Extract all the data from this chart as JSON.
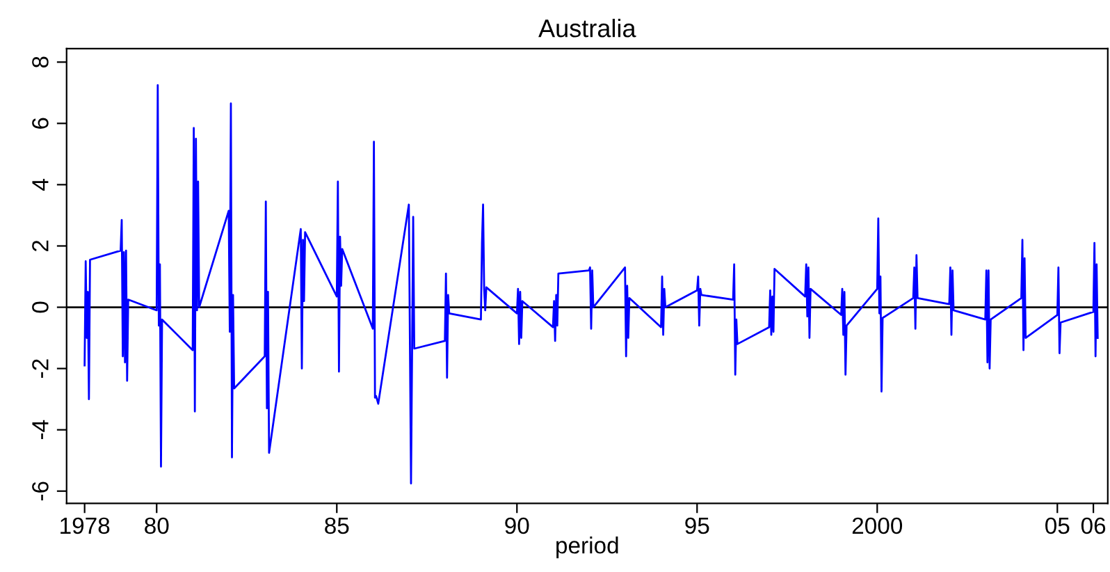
{
  "chart_data": {
    "type": "line",
    "title": "Australia",
    "xlabel": "period",
    "series": [
      {
        "color": "#0000ff",
        "x": [
          1978.0,
          1978.03,
          1978.06,
          1978.09,
          1978.12,
          1978.15,
          1979.0,
          1979.03,
          1979.06,
          1979.09,
          1979.12,
          1979.15,
          1979.18,
          1979.21,
          1980.0,
          1980.03,
          1980.06,
          1980.09,
          1980.12,
          1980.15,
          1981.0,
          1981.03,
          1981.06,
          1981.09,
          1981.12,
          1981.15,
          1981.18,
          1982.0,
          1982.03,
          1982.06,
          1982.09,
          1982.12,
          1982.15,
          1983.0,
          1983.03,
          1983.06,
          1983.09,
          1983.12,
          1984.0,
          1984.03,
          1984.06,
          1984.09,
          1984.12,
          1985.0,
          1985.03,
          1985.06,
          1985.09,
          1985.12,
          1985.15,
          1986.0,
          1986.03,
          1986.06,
          1986.09,
          1986.15,
          1987.0,
          1987.06,
          1987.12,
          1987.15,
          1988.0,
          1988.03,
          1988.06,
          1988.09,
          1988.12,
          1989.0,
          1989.03,
          1989.06,
          1989.09,
          1989.12,
          1989.15,
          1990.0,
          1990.03,
          1990.06,
          1990.09,
          1990.12,
          1990.15,
          1991.0,
          1991.03,
          1991.06,
          1991.09,
          1991.12,
          1991.15,
          1992.0,
          1992.03,
          1992.06,
          1992.09,
          1992.12,
          1993.0,
          1993.03,
          1993.06,
          1993.09,
          1993.12,
          1994.0,
          1994.03,
          1994.06,
          1994.09,
          1994.12,
          1995.0,
          1995.03,
          1995.06,
          1995.09,
          1995.12,
          1996.0,
          1996.03,
          1996.06,
          1996.09,
          1996.12,
          1997.0,
          1997.03,
          1997.06,
          1997.09,
          1997.12,
          1997.15,
          1998.0,
          1998.03,
          1998.06,
          1998.09,
          1998.12,
          1998.15,
          1999.0,
          1999.03,
          1999.06,
          1999.09,
          1999.12,
          1999.15,
          2000.0,
          2000.03,
          2000.06,
          2000.09,
          2000.12,
          2000.15,
          2001.0,
          2001.03,
          2001.06,
          2001.09,
          2001.12,
          2002.0,
          2002.03,
          2002.06,
          2002.09,
          2002.12,
          2003.0,
          2003.03,
          2003.06,
          2003.09,
          2003.12,
          2003.15,
          2004.0,
          2004.03,
          2004.06,
          2004.09,
          2004.12,
          2005.0,
          2005.03,
          2005.06,
          2005.09,
          2006.0,
          2006.03,
          2006.06,
          2006.09,
          2006.12
        ],
        "values": [
          -1.9,
          1.5,
          -1.0,
          0.5,
          -3.0,
          1.55,
          1.85,
          2.85,
          -1.6,
          1.8,
          -1.8,
          1.85,
          -2.4,
          0.25,
          -0.1,
          7.25,
          -0.6,
          1.4,
          -5.2,
          -0.4,
          -1.4,
          5.85,
          -3.4,
          5.5,
          -0.1,
          4.1,
          0.0,
          3.15,
          -0.8,
          6.65,
          -4.9,
          0.4,
          -2.65,
          -1.6,
          3.45,
          -3.3,
          0.5,
          -4.75,
          2.55,
          -2.0,
          2.2,
          0.2,
          2.45,
          0.35,
          4.1,
          -2.1,
          2.3,
          0.7,
          1.9,
          -0.7,
          5.4,
          -2.95,
          -2.9,
          -3.15,
          3.35,
          -5.75,
          2.95,
          -1.35,
          -1.1,
          1.1,
          -2.3,
          0.4,
          -0.2,
          -0.4,
          2.1,
          3.35,
          0.6,
          -0.1,
          0.65,
          -0.2,
          0.6,
          -1.2,
          0.5,
          -1.0,
          0.2,
          -0.65,
          0.2,
          -1.1,
          0.4,
          -0.6,
          1.1,
          1.2,
          1.3,
          -0.7,
          1.2,
          0.0,
          1.3,
          -1.6,
          0.7,
          -1.0,
          0.3,
          -0.65,
          1.0,
          -0.9,
          0.6,
          0.0,
          0.55,
          1.0,
          -0.6,
          0.6,
          0.4,
          0.25,
          1.4,
          -2.2,
          -0.4,
          -1.2,
          -0.65,
          0.55,
          -0.9,
          0.35,
          -0.8,
          1.25,
          0.35,
          1.4,
          -0.3,
          1.3,
          -1.0,
          0.6,
          -0.25,
          0.6,
          -0.9,
          0.5,
          -2.2,
          -0.6,
          0.6,
          2.9,
          -0.2,
          1.0,
          -2.75,
          -0.35,
          0.3,
          1.3,
          -0.7,
          1.7,
          0.3,
          0.1,
          1.3,
          -0.9,
          1.2,
          -0.1,
          -0.4,
          1.2,
          -1.8,
          1.2,
          -2.0,
          -0.4,
          0.3,
          2.2,
          -1.4,
          1.6,
          -1.0,
          -0.25,
          1.3,
          -1.5,
          -0.5,
          -0.15,
          2.1,
          -1.6,
          1.4,
          -1.0
        ]
      }
    ],
    "xlim": [
      1977.5,
      2006.4
    ],
    "xticks": [
      {
        "value": 1978,
        "label": "1978"
      },
      {
        "value": 1980,
        "label": "80"
      },
      {
        "value": 1985,
        "label": "85"
      },
      {
        "value": 1990,
        "label": "90"
      },
      {
        "value": 1995,
        "label": "95"
      },
      {
        "value": 2000,
        "label": "2000"
      },
      {
        "value": 2005,
        "label": "05"
      },
      {
        "value": 2006,
        "label": "06"
      }
    ],
    "ylim": [
      -6.4,
      8.44
    ],
    "yticks": [
      -6,
      -4,
      -2,
      0,
      2,
      4,
      6,
      8
    ],
    "ref_lines": [
      {
        "axis": "y",
        "value": 0,
        "color": "#000000"
      }
    ],
    "grid": false,
    "marker": "none",
    "line_style": "solid"
  }
}
